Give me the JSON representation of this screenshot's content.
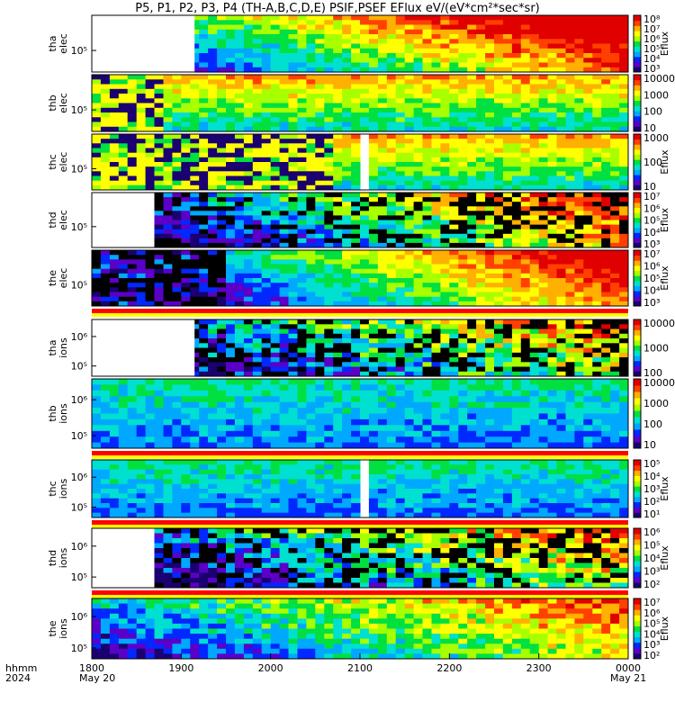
{
  "title": "P5, P1, P2, P3, P4 (TH-A,B,C,D,E) PSIF,PSEF EFlux eV/(eV*cm²*sec*sr)",
  "footer": {
    "row1_label": "hhmm",
    "row2_label": "2024",
    "start_date": "May 20",
    "end_date": "May 21"
  },
  "chart_data": {
    "type": "heatmap",
    "x_axis": {
      "ticks": [
        "1800",
        "1900",
        "2000",
        "2100",
        "2200",
        "2300",
        "0000"
      ],
      "hours": [
        18,
        19,
        20,
        21,
        22,
        23,
        24
      ],
      "range_hours": [
        18,
        24
      ]
    },
    "colormap": [
      "#1a0070",
      "#5b00c8",
      "#0028ff",
      "#00a8ff",
      "#00e0d0",
      "#00e040",
      "#a8ff00",
      "#ffff00",
      "#ffb000",
      "#ff4000",
      "#e00000"
    ],
    "panels": [
      {
        "probe": "tha",
        "species": "elec",
        "yticks": [
          "10⁵"
        ],
        "cb_ticks": [
          "10⁸",
          "10⁷",
          "10⁶",
          "10⁵",
          "10⁴",
          "10³"
        ],
        "cb_label": "Eflux",
        "data_start_hours": 19.15,
        "gap_hours": null,
        "pattern": "rise",
        "flag_bar": false
      },
      {
        "probe": "thb",
        "species": "elec",
        "yticks": [
          "10⁵"
        ],
        "cb_ticks": [
          "10000",
          "1000",
          "100",
          "10"
        ],
        "cb_label": "",
        "data_start_hours": 18.0,
        "gap_hours": null,
        "pattern": "noise_then_band",
        "noise_end_hours": 18.8,
        "flag_bar": false
      },
      {
        "probe": "thc",
        "species": "elec",
        "yticks": [
          "10⁵"
        ],
        "cb_ticks": [
          "1000",
          "100",
          "10"
        ],
        "cb_label": "Eflux",
        "data_start_hours": 18.0,
        "gap_hours": [
          21.0,
          21.12
        ],
        "pattern": "noise_then_band",
        "noise_end_hours": 20.7,
        "flag_bar": false
      },
      {
        "probe": "thd",
        "species": "elec",
        "yticks": [
          "10⁵"
        ],
        "cb_ticks": [
          "10⁷",
          "10⁶",
          "10⁵",
          "10⁴",
          "10³"
        ],
        "cb_label": "Eflux",
        "data_start_hours": 18.7,
        "gap_hours": null,
        "pattern": "sparse_rise",
        "flag_bar": false
      },
      {
        "probe": "the",
        "species": "elec",
        "yticks": [
          "10⁵"
        ],
        "cb_ticks": [
          "10⁷",
          "10⁶",
          "10⁵",
          "10⁴",
          "10³"
        ],
        "cb_label": "Eflux",
        "data_start_hours": 18.0,
        "gap_hours": null,
        "pattern": "dark_then_rise",
        "flag_bar": true
      },
      {
        "probe": "tha",
        "species": "ions",
        "yticks": [
          "10⁶",
          "10⁵"
        ],
        "cb_ticks": [
          "10000",
          "1000",
          "100"
        ],
        "cb_label": "",
        "data_start_hours": 19.15,
        "gap_hours": null,
        "pattern": "ion_sparse",
        "flag_bar": true
      },
      {
        "probe": "thb",
        "species": "ions",
        "yticks": [
          "10⁶",
          "10⁵"
        ],
        "cb_ticks": [
          "10000",
          "1000",
          "100",
          "10"
        ],
        "cb_label": "",
        "data_start_hours": 18.0,
        "gap_hours": null,
        "pattern": "ion_blue",
        "flag_bar": true
      },
      {
        "probe": "thc",
        "species": "ions",
        "yticks": [
          "10⁶",
          "10⁵"
        ],
        "cb_ticks": [
          "10⁵",
          "10⁴",
          "10³",
          "10²",
          "10¹"
        ],
        "cb_label": "Eflux",
        "data_start_hours": 18.0,
        "gap_hours": [
          21.0,
          21.12
        ],
        "pattern": "ion_blue",
        "flag_bar": true
      },
      {
        "probe": "thd",
        "species": "ions",
        "yticks": [
          "10⁶",
          "10⁵"
        ],
        "cb_ticks": [
          "10⁶",
          "10⁵",
          "10⁴",
          "10³",
          "10²"
        ],
        "cb_label": "Eflux",
        "data_start_hours": 18.7,
        "gap_hours": null,
        "pattern": "ion_sparse",
        "flag_bar": true
      },
      {
        "probe": "the",
        "species": "ions",
        "yticks": [
          "10⁶",
          "10⁵"
        ],
        "cb_ticks": [
          "10⁷",
          "10⁶",
          "10⁵",
          "10⁴",
          "10³",
          "10²"
        ],
        "cb_label": "Eflux",
        "data_start_hours": 18.0,
        "gap_hours": null,
        "pattern": "ion_dense",
        "flag_bar": false
      }
    ]
  }
}
